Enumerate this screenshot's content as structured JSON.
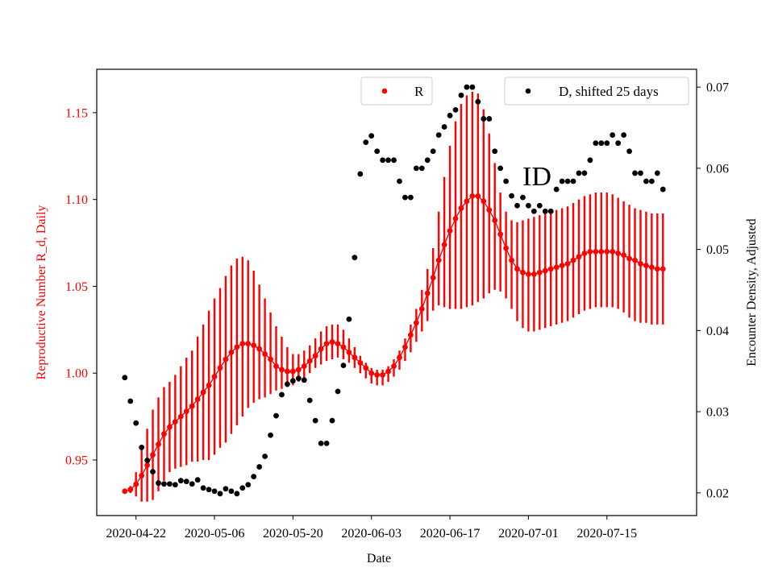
{
  "chart_data": {
    "type": "scatter",
    "annotation": "ID",
    "xlabel": "Date",
    "ylabel_left": "Reproductive Number R_d, Daily",
    "ylabel_right": "Encounter Density, Adjusted",
    "x_ticks": [
      "2020-04-22",
      "2020-05-06",
      "2020-05-20",
      "2020-06-03",
      "2020-06-17",
      "2020-07-01",
      "2020-07-15"
    ],
    "y_left_ticks": [
      "0.95",
      "1.00",
      "1.05",
      "1.10",
      "1.15"
    ],
    "y_right_ticks": [
      "0.02",
      "0.03",
      "0.04",
      "0.05",
      "0.06",
      "0.07"
    ],
    "x_range": [
      "2020-04-15",
      "2020-07-31"
    ],
    "y_left_range": [
      0.918,
      1.175
    ],
    "y_right_range": [
      0.0172,
      0.0722
    ],
    "colors": {
      "R": "#ff0000",
      "D": "#000000"
    },
    "legend": [
      {
        "label": "R",
        "color": "#ff0000",
        "position": "upper-center"
      },
      {
        "label": "D, shifted 25 days",
        "color": "#000000",
        "position": "upper-right"
      }
    ],
    "series_R": {
      "name": "R",
      "axis": "left",
      "x": [
        "2020-04-20",
        "2020-04-21",
        "2020-04-22",
        "2020-04-23",
        "2020-04-24",
        "2020-04-25",
        "2020-04-26",
        "2020-04-27",
        "2020-04-28",
        "2020-04-29",
        "2020-04-30",
        "2020-05-01",
        "2020-05-02",
        "2020-05-03",
        "2020-05-04",
        "2020-05-05",
        "2020-05-06",
        "2020-05-07",
        "2020-05-08",
        "2020-05-09",
        "2020-05-10",
        "2020-05-11",
        "2020-05-12",
        "2020-05-13",
        "2020-05-14",
        "2020-05-15",
        "2020-05-16",
        "2020-05-17",
        "2020-05-18",
        "2020-05-19",
        "2020-05-20",
        "2020-05-21",
        "2020-05-22",
        "2020-05-23",
        "2020-05-24",
        "2020-05-25",
        "2020-05-26",
        "2020-05-27",
        "2020-05-28",
        "2020-05-29",
        "2020-05-30",
        "2020-05-31",
        "2020-06-01",
        "2020-06-02",
        "2020-06-03",
        "2020-06-04",
        "2020-06-05",
        "2020-06-06",
        "2020-06-07",
        "2020-06-08",
        "2020-06-09",
        "2020-06-10",
        "2020-06-11",
        "2020-06-12",
        "2020-06-13",
        "2020-06-14",
        "2020-06-15",
        "2020-06-16",
        "2020-06-17",
        "2020-06-18",
        "2020-06-19",
        "2020-06-20",
        "2020-06-21",
        "2020-06-22",
        "2020-06-23",
        "2020-06-24",
        "2020-06-25",
        "2020-06-26",
        "2020-06-27",
        "2020-06-28",
        "2020-06-29",
        "2020-06-30",
        "2020-07-01",
        "2020-07-02",
        "2020-07-03",
        "2020-07-04",
        "2020-07-05",
        "2020-07-06",
        "2020-07-07",
        "2020-07-08",
        "2020-07-09",
        "2020-07-10",
        "2020-07-11",
        "2020-07-12",
        "2020-07-13",
        "2020-07-14",
        "2020-07-15",
        "2020-07-16",
        "2020-07-17",
        "2020-07-18",
        "2020-07-19",
        "2020-07-20",
        "2020-07-21",
        "2020-07-22",
        "2020-07-23",
        "2020-07-24",
        "2020-07-25"
      ],
      "y": [
        0.932,
        0.933,
        0.936,
        0.941,
        0.947,
        0.953,
        0.959,
        0.965,
        0.969,
        0.972,
        0.975,
        0.978,
        0.981,
        0.985,
        0.989,
        0.993,
        0.998,
        1.003,
        1.008,
        1.012,
        1.015,
        1.017,
        1.017,
        1.016,
        1.014,
        1.011,
        1.008,
        1.004,
        1.002,
        1.001,
        1.001,
        1.002,
        1.004,
        1.007,
        1.01,
        1.014,
        1.017,
        1.018,
        1.017,
        1.015,
        1.012,
        1.009,
        1.006,
        1.003,
        1.0,
        0.999,
        0.999,
        1.001,
        1.004,
        1.009,
        1.015,
        1.022,
        1.029,
        1.037,
        1.046,
        1.055,
        1.065,
        1.074,
        1.082,
        1.089,
        1.095,
        1.099,
        1.102,
        1.102,
        1.099,
        1.094,
        1.088,
        1.08,
        1.072,
        1.065,
        1.06,
        1.058,
        1.057,
        1.057,
        1.058,
        1.059,
        1.06,
        1.061,
        1.062,
        1.063,
        1.065,
        1.067,
        1.069,
        1.07,
        1.07,
        1.07,
        1.07,
        1.07,
        1.069,
        1.068,
        1.066,
        1.065,
        1.063,
        1.062,
        1.061,
        1.06,
        1.06
      ],
      "y_low": [
        0.932,
        0.931,
        0.929,
        0.926,
        0.926,
        0.927,
        0.932,
        0.938,
        0.943,
        0.945,
        0.946,
        0.947,
        0.949,
        0.949,
        0.95,
        0.95,
        0.953,
        0.957,
        0.96,
        0.965,
        0.97,
        0.975,
        0.98,
        0.983,
        0.985,
        0.986,
        0.988,
        0.99,
        0.991,
        0.992,
        0.993,
        0.995,
        0.997,
        1.0,
        1.003,
        1.005,
        1.007,
        1.008,
        1.009,
        1.008,
        1.006,
        1.003,
        1.0,
        0.997,
        0.994,
        0.993,
        0.993,
        0.995,
        0.998,
        1.002,
        1.007,
        1.012,
        1.018,
        1.024,
        1.03,
        1.036,
        1.039,
        1.038,
        1.037,
        1.037,
        1.037,
        1.038,
        1.039,
        1.041,
        1.043,
        1.046,
        1.048,
        1.047,
        1.043,
        1.037,
        1.03,
        1.026,
        1.024,
        1.024,
        1.025,
        1.026,
        1.027,
        1.028,
        1.029,
        1.03,
        1.032,
        1.034,
        1.036,
        1.037,
        1.038,
        1.038,
        1.038,
        1.038,
        1.037,
        1.035,
        1.032,
        1.03,
        1.029,
        1.029,
        1.028,
        1.028,
        1.028
      ],
      "y_high": [
        0.932,
        0.935,
        0.943,
        0.956,
        0.968,
        0.979,
        0.986,
        0.992,
        0.995,
        0.999,
        1.004,
        1.009,
        1.013,
        1.021,
        1.028,
        1.036,
        1.043,
        1.049,
        1.056,
        1.062,
        1.066,
        1.067,
        1.065,
        1.059,
        1.051,
        1.043,
        1.035,
        1.027,
        1.021,
        1.015,
        1.011,
        1.011,
        1.013,
        1.016,
        1.02,
        1.024,
        1.027,
        1.028,
        1.028,
        1.025,
        1.02,
        1.015,
        1.01,
        1.006,
        1.003,
        1.002,
        1.002,
        1.004,
        1.008,
        1.013,
        1.02,
        1.028,
        1.037,
        1.048,
        1.06,
        1.072,
        1.093,
        1.113,
        1.131,
        1.145,
        1.155,
        1.16,
        1.162,
        1.161,
        1.152,
        1.138,
        1.121,
        1.104,
        1.093,
        1.088,
        1.087,
        1.088,
        1.089,
        1.09,
        1.091,
        1.092,
        1.093,
        1.094,
        1.095,
        1.096,
        1.098,
        1.1,
        1.102,
        1.103,
        1.104,
        1.104,
        1.104,
        1.103,
        1.101,
        1.099,
        1.097,
        1.095,
        1.094,
        1.093,
        1.092,
        1.092,
        1.092
      ]
    },
    "series_D": {
      "name": "D, shifted 25 days",
      "axis": "right",
      "x": [
        "2020-04-20",
        "2020-04-21",
        "2020-04-22",
        "2020-04-23",
        "2020-04-24",
        "2020-04-25",
        "2020-04-26",
        "2020-04-27",
        "2020-04-28",
        "2020-04-29",
        "2020-04-30",
        "2020-05-01",
        "2020-05-02",
        "2020-05-03",
        "2020-05-04",
        "2020-05-05",
        "2020-05-06",
        "2020-05-07",
        "2020-05-08",
        "2020-05-09",
        "2020-05-10",
        "2020-05-11",
        "2020-05-12",
        "2020-05-13",
        "2020-05-14",
        "2020-05-15",
        "2020-05-16",
        "2020-05-17",
        "2020-05-18",
        "2020-05-19",
        "2020-05-20",
        "2020-05-21",
        "2020-05-22",
        "2020-05-23",
        "2020-05-24",
        "2020-05-25",
        "2020-05-26",
        "2020-05-27",
        "2020-05-28",
        "2020-05-29",
        "2020-05-30",
        "2020-05-31",
        "2020-06-01",
        "2020-06-02",
        "2020-06-03",
        "2020-06-04",
        "2020-06-05",
        "2020-06-06",
        "2020-06-07",
        "2020-06-08",
        "2020-06-09",
        "2020-06-10",
        "2020-06-11",
        "2020-06-12",
        "2020-06-13",
        "2020-06-14",
        "2020-06-15",
        "2020-06-16",
        "2020-06-17",
        "2020-06-18",
        "2020-06-19",
        "2020-06-20",
        "2020-06-21",
        "2020-06-22",
        "2020-06-23",
        "2020-06-24",
        "2020-06-25",
        "2020-06-26",
        "2020-06-27",
        "2020-06-28",
        "2020-06-29",
        "2020-06-30",
        "2020-07-01",
        "2020-07-02",
        "2020-07-03",
        "2020-07-04",
        "2020-07-05",
        "2020-07-06",
        "2020-07-07",
        "2020-07-08",
        "2020-07-09",
        "2020-07-10",
        "2020-07-11",
        "2020-07-12",
        "2020-07-13",
        "2020-07-14",
        "2020-07-15",
        "2020-07-16",
        "2020-07-17",
        "2020-07-18",
        "2020-07-19",
        "2020-07-20",
        "2020-07-21",
        "2020-07-22",
        "2020-07-23",
        "2020-07-24",
        "2020-07-25"
      ],
      "y": [
        0.0342,
        0.0313,
        0.0286,
        0.0256,
        0.024,
        0.0226,
        0.0212,
        0.0211,
        0.0211,
        0.021,
        0.0215,
        0.0214,
        0.0211,
        0.0216,
        0.0206,
        0.0204,
        0.0202,
        0.0199,
        0.0205,
        0.0202,
        0.0199,
        0.0206,
        0.021,
        0.022,
        0.0232,
        0.0245,
        0.0271,
        0.0295,
        0.0321,
        0.0334,
        0.0338,
        0.0341,
        0.0339,
        0.0314,
        0.0289,
        0.0261,
        0.0261,
        0.0289,
        0.0325,
        0.0357,
        0.0414,
        0.049,
        0.0593,
        0.0632,
        0.064,
        0.0621,
        0.061,
        0.061,
        0.061,
        0.0584,
        0.0564,
        0.0564,
        0.06,
        0.06,
        0.061,
        0.0621,
        0.0641,
        0.0651,
        0.0665,
        0.0672,
        0.069,
        0.07,
        0.07,
        0.0682,
        0.0661,
        0.0661,
        0.0621,
        0.06,
        0.0584,
        0.0566,
        0.0554,
        0.0564,
        0.0554,
        0.0547,
        0.0554,
        0.0547,
        0.0547,
        0.0574,
        0.0584,
        0.0584,
        0.0584,
        0.0594,
        0.0594,
        0.061,
        0.0631,
        0.0631,
        0.0631,
        0.0641,
        0.0631,
        0.0641,
        0.0621,
        0.0594,
        0.0594,
        0.0584,
        0.0584,
        0.0594,
        0.0574
      ]
    }
  }
}
